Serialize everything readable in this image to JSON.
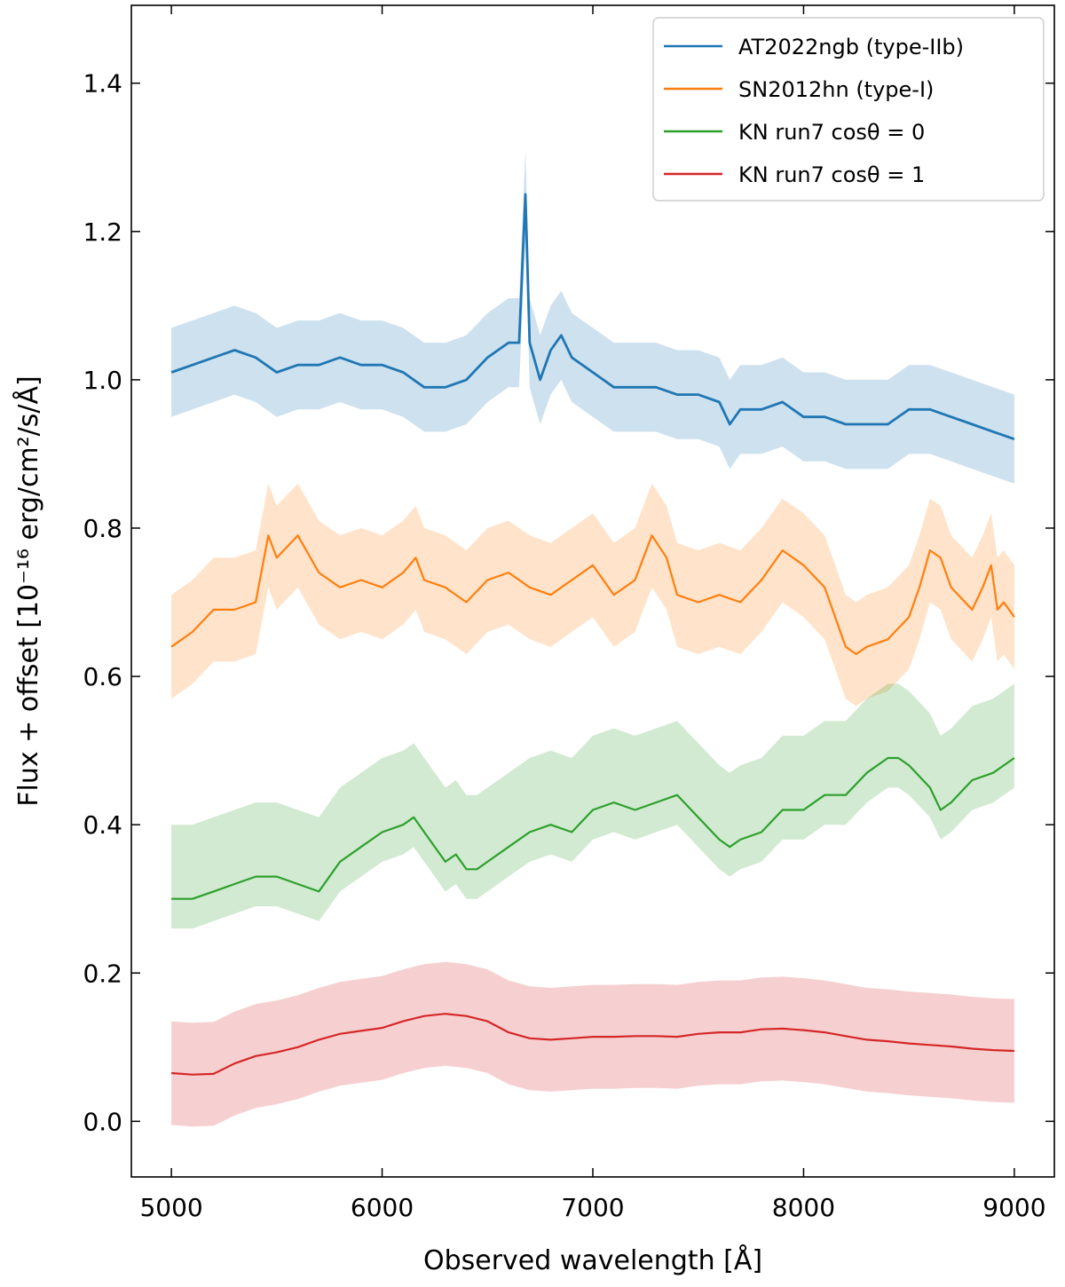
{
  "chart_data": {
    "type": "line",
    "xlabel": "Observed wavelength [Å]",
    "ylabel": "Flux + offset [10⁻¹⁶ erg/cm²/s/Å]",
    "xlim": [
      4810,
      9190
    ],
    "ylim": [
      -0.075,
      1.505
    ],
    "xticks": [
      5000,
      6000,
      7000,
      8000,
      9000
    ],
    "xtick_labels": [
      "5000",
      "6000",
      "7000",
      "8000",
      "9000"
    ],
    "yticks": [
      0.0,
      0.2,
      0.4,
      0.6,
      0.8,
      1.0,
      1.2,
      1.4
    ],
    "ytick_labels": [
      "0.0",
      "0.2",
      "0.4",
      "0.6",
      "0.8",
      "1.0",
      "1.2",
      "1.4"
    ],
    "legend_position": "top-right",
    "series": [
      {
        "name": "AT2022ngb (type-IIb)",
        "color": "#1f77b4",
        "x": [
          5000,
          5100,
          5200,
          5300,
          5400,
          5500,
          5600,
          5700,
          5800,
          5900,
          6000,
          6100,
          6200,
          6300,
          6400,
          6500,
          6600,
          6650,
          6680,
          6700,
          6750,
          6800,
          6850,
          6900,
          7000,
          7100,
          7200,
          7300,
          7400,
          7500,
          7600,
          7650,
          7700,
          7800,
          7900,
          8000,
          8100,
          8200,
          8300,
          8400,
          8500,
          8600,
          8700,
          8800,
          8900,
          9000
        ],
        "y": [
          1.01,
          1.02,
          1.03,
          1.04,
          1.03,
          1.01,
          1.02,
          1.02,
          1.03,
          1.02,
          1.02,
          1.01,
          0.99,
          0.99,
          1.0,
          1.03,
          1.05,
          1.05,
          1.25,
          1.05,
          1.0,
          1.04,
          1.06,
          1.03,
          1.01,
          0.99,
          0.99,
          0.99,
          0.98,
          0.98,
          0.97,
          0.94,
          0.96,
          0.96,
          0.97,
          0.95,
          0.95,
          0.94,
          0.94,
          0.94,
          0.96,
          0.96,
          0.95,
          0.94,
          0.93,
          0.92
        ],
        "band": 0.06
      },
      {
        "name": "SN2012hn (type-I)",
        "color": "#ff7f0e",
        "x": [
          5000,
          5100,
          5200,
          5300,
          5400,
          5460,
          5500,
          5600,
          5700,
          5800,
          5900,
          6000,
          6100,
          6160,
          6200,
          6300,
          6400,
          6500,
          6600,
          6700,
          6800,
          6900,
          7000,
          7100,
          7200,
          7280,
          7350,
          7400,
          7500,
          7600,
          7700,
          7800,
          7900,
          8000,
          8100,
          8200,
          8250,
          8300,
          8400,
          8500,
          8550,
          8600,
          8650,
          8700,
          8800,
          8850,
          8890,
          8920,
          8950,
          9000
        ],
        "y": [
          0.64,
          0.66,
          0.69,
          0.69,
          0.7,
          0.79,
          0.76,
          0.79,
          0.74,
          0.72,
          0.73,
          0.72,
          0.74,
          0.76,
          0.73,
          0.72,
          0.7,
          0.73,
          0.74,
          0.72,
          0.71,
          0.73,
          0.75,
          0.71,
          0.73,
          0.79,
          0.76,
          0.71,
          0.7,
          0.71,
          0.7,
          0.73,
          0.77,
          0.75,
          0.72,
          0.64,
          0.63,
          0.64,
          0.65,
          0.68,
          0.72,
          0.77,
          0.76,
          0.72,
          0.69,
          0.72,
          0.75,
          0.69,
          0.7,
          0.68
        ],
        "band": 0.07
      },
      {
        "name": "KN run7 cosθ = 0",
        "color": "#2ca02c",
        "x": [
          5000,
          5100,
          5200,
          5300,
          5400,
          5500,
          5600,
          5700,
          5800,
          5900,
          6000,
          6100,
          6150,
          6200,
          6300,
          6350,
          6400,
          6450,
          6500,
          6600,
          6700,
          6800,
          6900,
          7000,
          7100,
          7200,
          7300,
          7400,
          7500,
          7600,
          7650,
          7700,
          7800,
          7900,
          8000,
          8100,
          8200,
          8300,
          8400,
          8450,
          8500,
          8600,
          8650,
          8700,
          8800,
          8900,
          9000
        ],
        "y": [
          0.3,
          0.3,
          0.31,
          0.32,
          0.33,
          0.33,
          0.32,
          0.31,
          0.35,
          0.37,
          0.39,
          0.4,
          0.41,
          0.39,
          0.35,
          0.36,
          0.34,
          0.34,
          0.35,
          0.37,
          0.39,
          0.4,
          0.39,
          0.42,
          0.43,
          0.42,
          0.43,
          0.44,
          0.41,
          0.38,
          0.37,
          0.38,
          0.39,
          0.42,
          0.42,
          0.44,
          0.44,
          0.47,
          0.49,
          0.49,
          0.48,
          0.45,
          0.42,
          0.43,
          0.46,
          0.47,
          0.49
        ],
        "band_lo": 0.04,
        "band_hi": 0.1
      },
      {
        "name": "KN run7 cosθ = 1",
        "color": "#d62728",
        "x": [
          5000,
          5100,
          5200,
          5300,
          5400,
          5500,
          5600,
          5700,
          5800,
          5900,
          6000,
          6100,
          6200,
          6300,
          6400,
          6500,
          6600,
          6700,
          6800,
          6900,
          7000,
          7100,
          7200,
          7300,
          7400,
          7500,
          7600,
          7700,
          7800,
          7900,
          8000,
          8100,
          8200,
          8300,
          8400,
          8500,
          8600,
          8700,
          8800,
          8900,
          9000
        ],
        "y": [
          0.065,
          0.063,
          0.064,
          0.078,
          0.088,
          0.093,
          0.1,
          0.11,
          0.118,
          0.122,
          0.126,
          0.135,
          0.142,
          0.145,
          0.142,
          0.135,
          0.12,
          0.112,
          0.11,
          0.112,
          0.114,
          0.114,
          0.115,
          0.115,
          0.114,
          0.118,
          0.12,
          0.12,
          0.124,
          0.125,
          0.123,
          0.12,
          0.115,
          0.11,
          0.108,
          0.105,
          0.103,
          0.101,
          0.098,
          0.096,
          0.095
        ],
        "band": 0.07
      }
    ]
  }
}
